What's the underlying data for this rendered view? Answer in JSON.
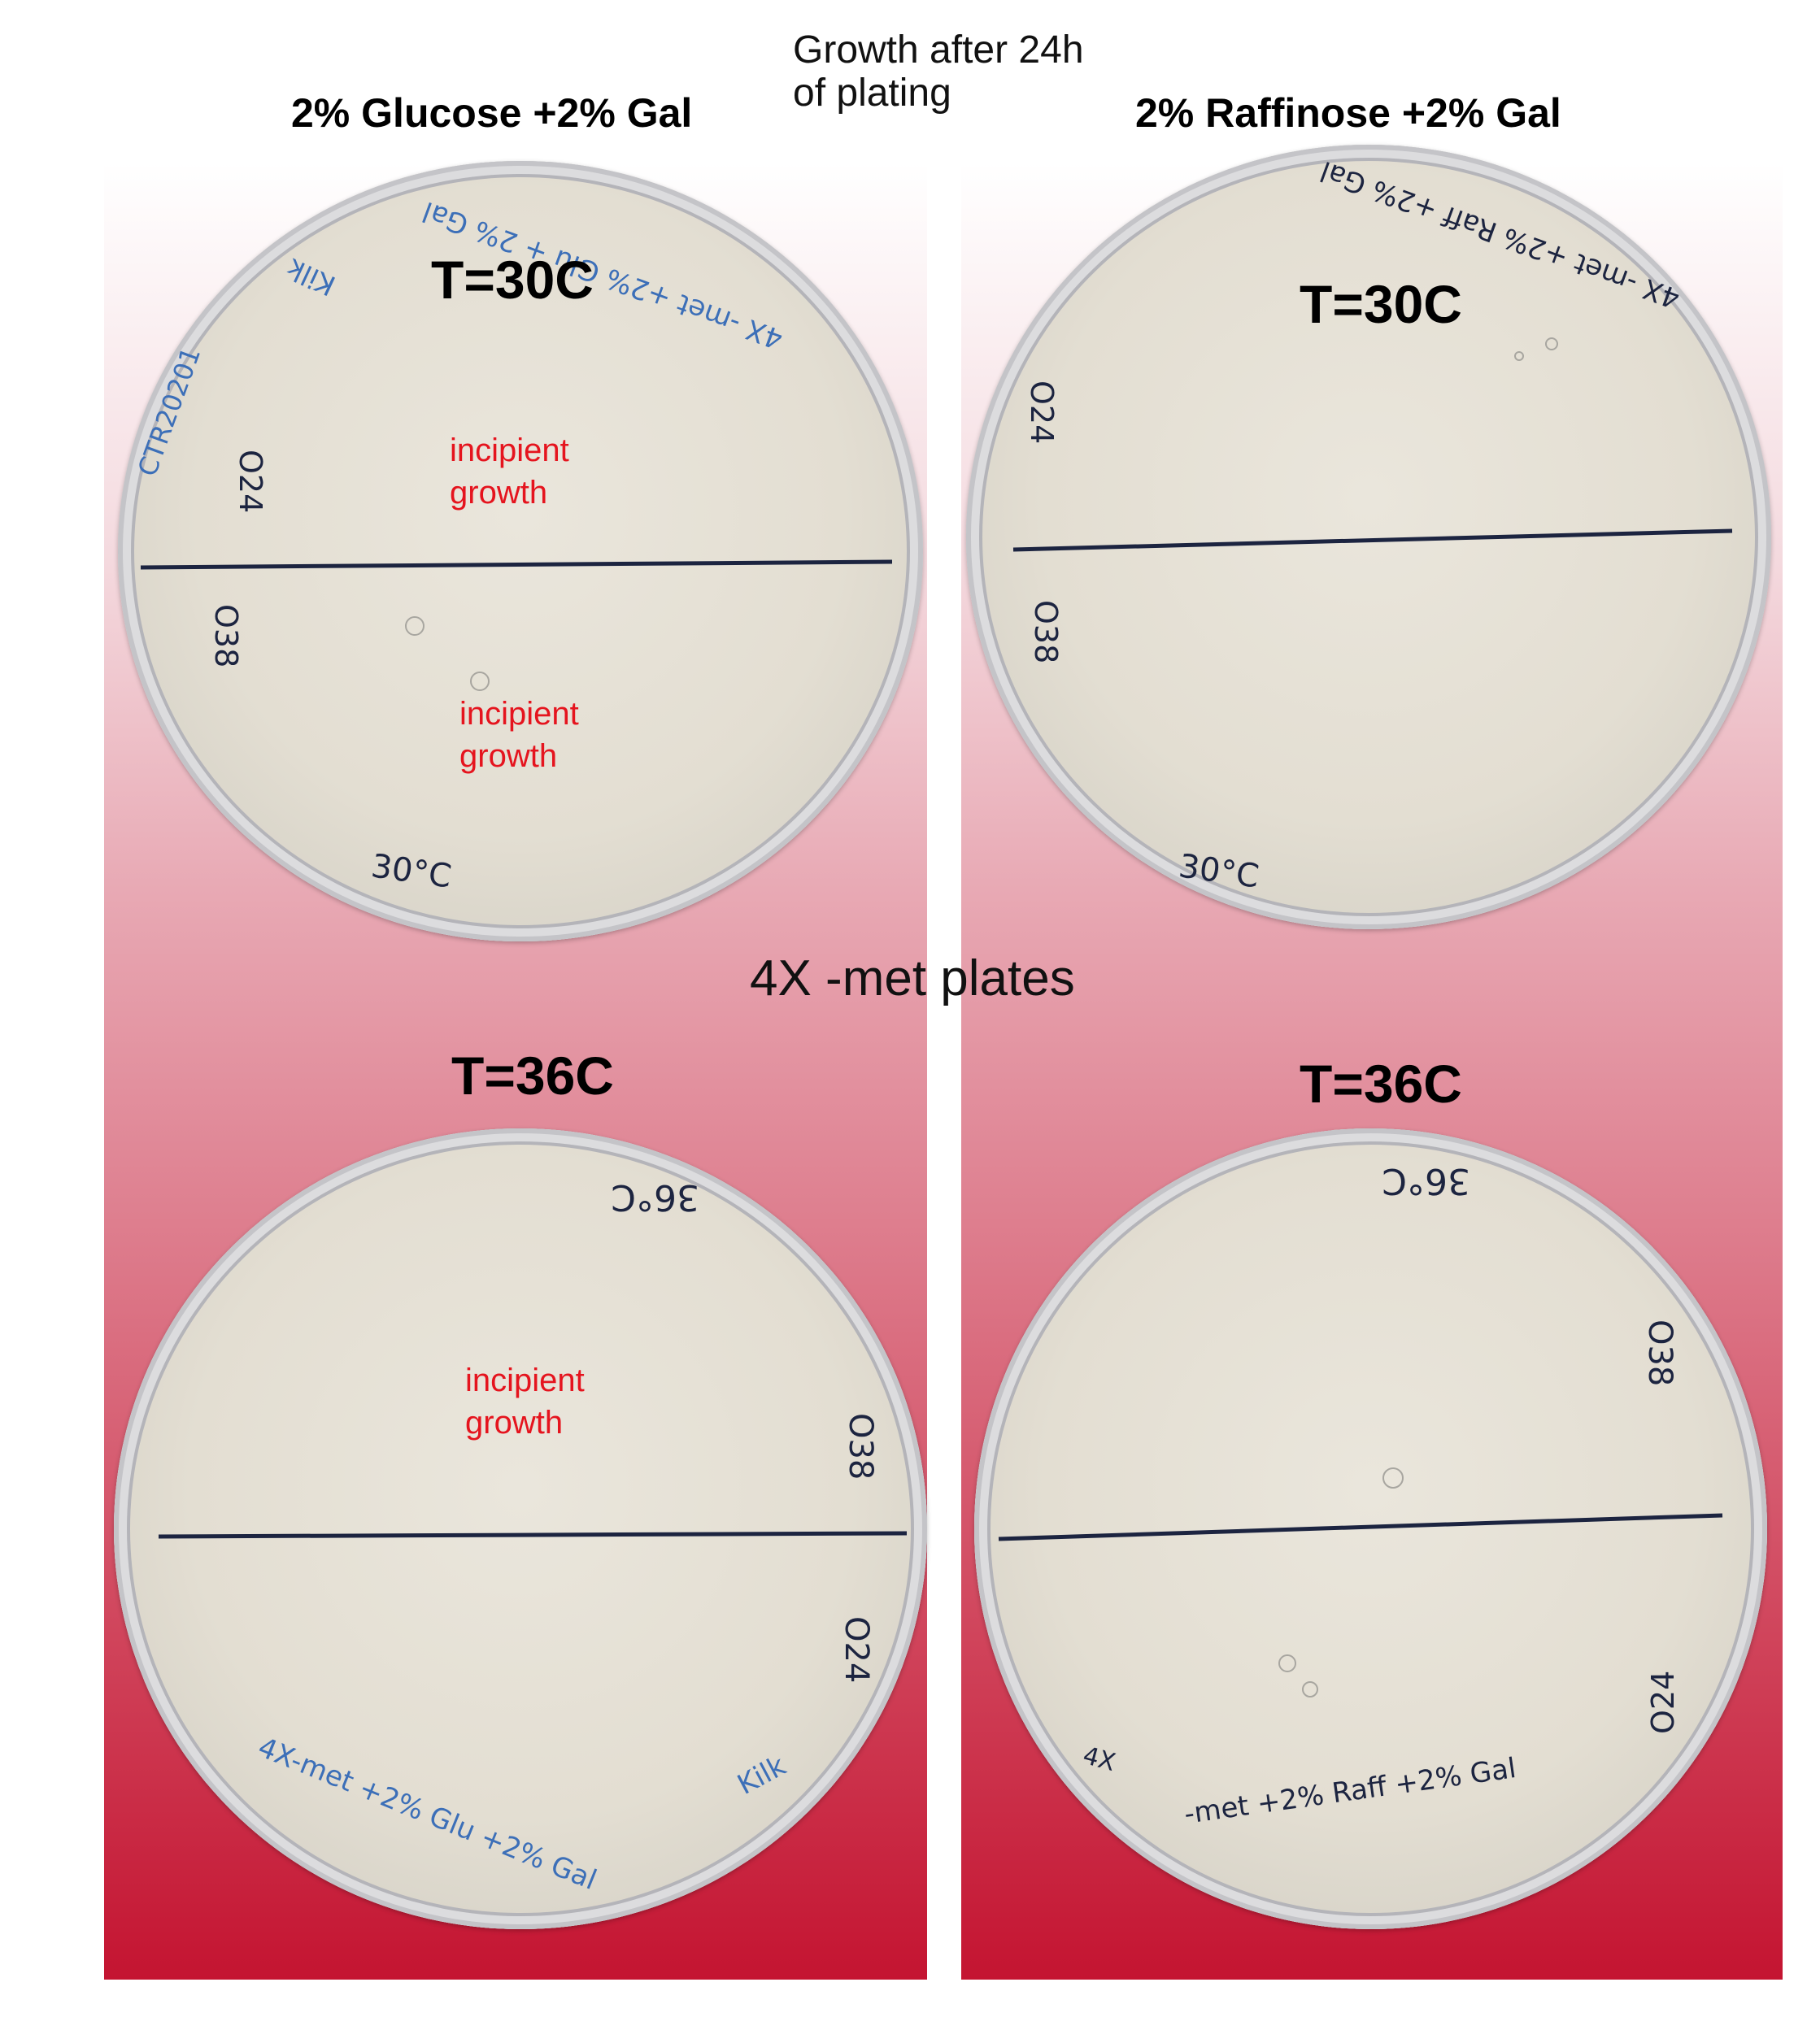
{
  "header": {
    "left_condition": "2% Glucose +2% Gal",
    "right_condition": "2% Raffinose +2% Gal",
    "growth_caption_line1": "Growth after 24h",
    "growth_caption_line2": "of plating"
  },
  "center_label": "4X -met plates",
  "plates": [
    {
      "temperature": "T=30C",
      "notes": [
        "incipient growth",
        "incipient growth"
      ],
      "handwriting": [
        "4X -met +2% Glu + 2% Gal",
        "Kilk",
        "CTR20201",
        "O24",
        "O38",
        "30°C"
      ]
    },
    {
      "temperature": "T=30C",
      "notes": [],
      "handwriting": [
        "4X -met +2% Raff +2% Gal",
        "O24",
        "O38",
        "30°C"
      ]
    },
    {
      "temperature": "T=36C",
      "notes": [
        "incipient growth"
      ],
      "handwriting": [
        "36°C",
        "O38",
        "O24",
        "4X-met +2% Glu +2% Gal",
        "Kilk"
      ]
    },
    {
      "temperature": "T=36C",
      "notes": [],
      "handwriting": [
        "36°C",
        "O38",
        "O24",
        "4X",
        "-met +2% Raff +2% Gal"
      ]
    }
  ],
  "colors": {
    "panel_top": "#ffffff",
    "panel_bottom": "#c41431",
    "note_text": "#e5141e",
    "marker_line": "#1c2440",
    "blue_ink": "#3c6fb8"
  }
}
